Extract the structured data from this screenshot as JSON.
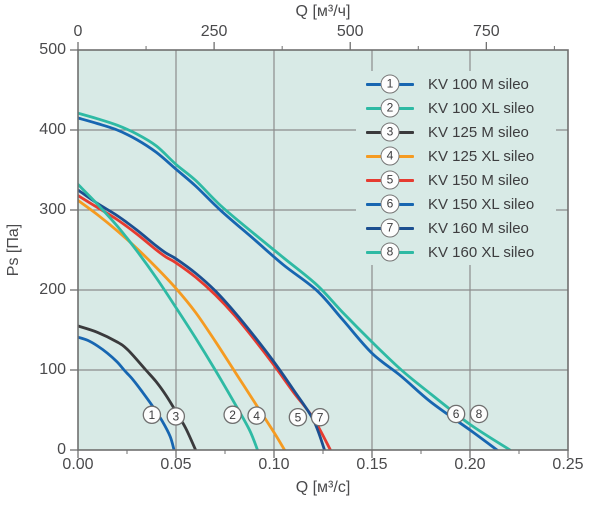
{
  "chart_data": {
    "type": "line",
    "description": "Fan performance curves: static pressure Ps versus airflow Q for KV sileo duct fans",
    "plot_background": "#d8eae6",
    "grid_color": "#8c8c8c",
    "border_color": "#6f6f6f",
    "tick_color": "#6f6f6f",
    "text_color": "#4a4a4c",
    "grid": true,
    "legend_position": "top-right-inside",
    "axes": {
      "top": {
        "title": "Q [м³/ч]",
        "range": [
          0,
          900
        ],
        "ticks": [
          {
            "value": 0,
            "label": "0"
          },
          {
            "value": 250,
            "label": "250"
          },
          {
            "value": 500,
            "label": "500"
          },
          {
            "value": 750,
            "label": "750"
          }
        ],
        "minor_ticks": [
          125,
          375,
          625,
          875
        ]
      },
      "bottom": {
        "title": "Q [м³/с]",
        "range": [
          0,
          0.25
        ],
        "ticks": [
          {
            "value": 0.0,
            "label": "0.00"
          },
          {
            "value": 0.05,
            "label": "0.05"
          },
          {
            "value": 0.1,
            "label": "0.10"
          },
          {
            "value": 0.15,
            "label": "0.15"
          },
          {
            "value": 0.2,
            "label": "0.20"
          },
          {
            "value": 0.25,
            "label": "0.25"
          }
        ],
        "minor_ticks": [
          0.025,
          0.075,
          0.125,
          0.175,
          0.225
        ]
      },
      "left": {
        "title": "Ps [Па]",
        "range": [
          0,
          500
        ],
        "ticks": [
          {
            "value": 0,
            "label": "0"
          },
          {
            "value": 100,
            "label": "100"
          },
          {
            "value": 200,
            "label": "200"
          },
          {
            "value": 300,
            "label": "300"
          },
          {
            "value": 400,
            "label": "400"
          },
          {
            "value": 500,
            "label": "500"
          }
        ],
        "minor_ticks": []
      }
    },
    "marker_style": {
      "fill": "#fdfdfd",
      "stroke": "#6f6f6f",
      "number_color": "#3b3b3d"
    },
    "series": [
      {
        "num": "1",
        "label": "KV 100 M sileo",
        "color": "#1766b1",
        "marker": {
          "x": 0.0377,
          "y": 44
        },
        "points": [
          [
            0,
            141
          ],
          [
            0.005,
            137
          ],
          [
            0.01,
            130
          ],
          [
            0.015,
            121
          ],
          [
            0.02,
            110
          ],
          [
            0.0235,
            100
          ],
          [
            0.028,
            88
          ],
          [
            0.033,
            72
          ],
          [
            0.038,
            55
          ],
          [
            0.043,
            36
          ],
          [
            0.047,
            17
          ],
          [
            0.049,
            0
          ]
        ]
      },
      {
        "num": "2",
        "label": "KV 100 XL sileo",
        "color": "#2ebaa4",
        "marker": {
          "x": 0.0789,
          "y": 44
        },
        "points": [
          [
            0,
            332
          ],
          [
            0.01,
            307
          ],
          [
            0.02,
            280
          ],
          [
            0.03,
            249
          ],
          [
            0.04,
            215
          ],
          [
            0.05,
            178
          ],
          [
            0.06,
            140
          ],
          [
            0.07,
            100
          ],
          [
            0.08,
            58
          ],
          [
            0.0875,
            25
          ],
          [
            0.0916,
            0
          ]
        ]
      },
      {
        "num": "3",
        "label": "KV 125 M sileo",
        "color": "#3a3a3c",
        "marker": {
          "x": 0.0499,
          "y": 42
        },
        "points": [
          [
            0,
            155
          ],
          [
            0.01,
            147
          ],
          [
            0.02,
            135
          ],
          [
            0.0255,
            125
          ],
          [
            0.0346,
            100
          ],
          [
            0.04,
            85
          ],
          [
            0.045,
            68
          ],
          [
            0.05,
            48
          ],
          [
            0.055,
            27
          ],
          [
            0.06,
            0
          ]
        ]
      },
      {
        "num": "4",
        "label": "KV 125 XL sileo",
        "color": "#f59b21",
        "marker": {
          "x": 0.0911,
          "y": 43
        },
        "points": [
          [
            0,
            312
          ],
          [
            0.01,
            294
          ],
          [
            0.02,
            274
          ],
          [
            0.03,
            252
          ],
          [
            0.04,
            228
          ],
          [
            0.05,
            202
          ],
          [
            0.06,
            172
          ],
          [
            0.07,
            136
          ],
          [
            0.08,
            98
          ],
          [
            0.09,
            60
          ],
          [
            0.1,
            22
          ],
          [
            0.1054,
            0
          ]
        ]
      },
      {
        "num": "5",
        "label": "KV 150 M sileo",
        "color": "#e63b30",
        "marker": {
          "x": 0.1122,
          "y": 41
        },
        "points": [
          [
            0,
            318
          ],
          [
            0.01,
            303
          ],
          [
            0.02,
            288
          ],
          [
            0.03,
            270
          ],
          [
            0.04,
            250
          ],
          [
            0.045,
            241
          ],
          [
            0.05,
            234
          ],
          [
            0.06,
            216
          ],
          [
            0.07,
            194
          ],
          [
            0.08,
            168
          ],
          [
            0.09,
            138
          ],
          [
            0.1,
            106
          ],
          [
            0.11,
            72
          ],
          [
            0.12,
            40
          ],
          [
            0.1288,
            0
          ]
        ]
      },
      {
        "num": "6",
        "label": "KV 150 XL sileo",
        "color": "#1766b1",
        "marker": {
          "x": 0.1929,
          "y": 45
        },
        "points": [
          [
            0,
            415
          ],
          [
            0.01,
            408
          ],
          [
            0.02,
            400
          ],
          [
            0.03,
            388
          ],
          [
            0.04,
            372
          ],
          [
            0.05,
            351
          ],
          [
            0.06,
            330
          ],
          [
            0.073,
            299
          ],
          [
            0.09,
            263
          ],
          [
            0.105,
            231
          ],
          [
            0.122,
            199
          ],
          [
            0.135,
            163
          ],
          [
            0.15,
            121
          ],
          [
            0.165,
            92
          ],
          [
            0.18,
            60
          ],
          [
            0.2,
            25
          ],
          [
            0.2138,
            0
          ]
        ]
      },
      {
        "num": "7",
        "label": "KV 160 M sileo",
        "color": "#1c4f90",
        "marker": {
          "x": 0.1235,
          "y": 41
        },
        "points": [
          [
            0,
            325
          ],
          [
            0.01,
            308
          ],
          [
            0.02,
            293
          ],
          [
            0.03,
            275
          ],
          [
            0.04,
            255
          ],
          [
            0.045,
            246
          ],
          [
            0.05,
            239
          ],
          [
            0.06,
            221
          ],
          [
            0.07,
            199
          ],
          [
            0.08,
            172
          ],
          [
            0.09,
            142
          ],
          [
            0.1,
            110
          ],
          [
            0.11,
            75
          ],
          [
            0.12,
            38
          ],
          [
            0.1258,
            0
          ]
        ]
      },
      {
        "num": "8",
        "label": "KV 160 XL sileo",
        "color": "#2ebaa4",
        "marker": {
          "x": 0.2046,
          "y": 45
        },
        "points": [
          [
            0,
            421
          ],
          [
            0.01,
            414
          ],
          [
            0.02,
            406
          ],
          [
            0.03,
            395
          ],
          [
            0.04,
            380
          ],
          [
            0.05,
            357
          ],
          [
            0.06,
            337
          ],
          [
            0.073,
            305
          ],
          [
            0.09,
            270
          ],
          [
            0.105,
            240
          ],
          [
            0.122,
            206
          ],
          [
            0.135,
            172
          ],
          [
            0.15,
            135
          ],
          [
            0.165,
            100
          ],
          [
            0.18,
            70
          ],
          [
            0.2,
            32
          ],
          [
            0.2204,
            0
          ]
        ]
      }
    ],
    "draw_order": [
      0,
      2,
      3,
      4,
      6,
      1,
      5,
      7
    ]
  }
}
